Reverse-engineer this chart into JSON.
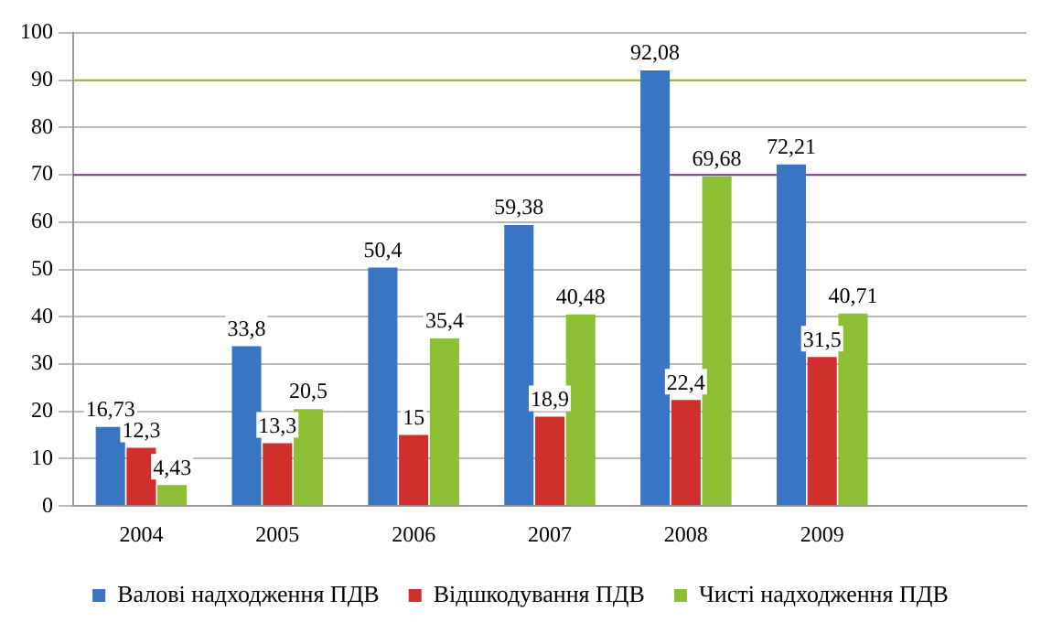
{
  "chart_data": {
    "type": "bar",
    "categories": [
      "2004",
      "2005",
      "2006",
      "2007",
      "2008",
      "2009",
      null
    ],
    "series": [
      {
        "name": "Валові надходження ПДВ",
        "color": "#3a75c4",
        "values": [
          16.73,
          33.8,
          50.4,
          59.38,
          92.08,
          72.21,
          null
        ],
        "value_labels": [
          "16,73",
          "33,8",
          "50,4",
          "59,38",
          "92,08",
          "72,21",
          null
        ]
      },
      {
        "name": "Відшкодування ПДВ",
        "color": "#d0302c",
        "values": [
          12.3,
          13.3,
          15,
          18.9,
          22.4,
          31.5,
          null
        ],
        "value_labels": [
          "12,3",
          "13,3",
          "15",
          "18,9",
          "22,4",
          "31,5",
          null
        ]
      },
      {
        "name": "Чисті надходження ПДВ",
        "color": "#8cbf34",
        "values": [
          4.43,
          20.5,
          35.4,
          40.48,
          69.68,
          40.71,
          null
        ],
        "value_labels": [
          "4,43",
          "20,5",
          "35,4",
          "40,48",
          "69,68",
          "40,71",
          null
        ]
      }
    ],
    "ylim": [
      0,
      100
    ],
    "yticks": [
      0,
      10,
      20,
      30,
      40,
      50,
      60,
      70,
      80,
      90,
      100
    ],
    "ref_lines": [
      {
        "axis": "y",
        "value": 70,
        "color": "#8a3a9a"
      },
      {
        "axis": "y",
        "value": 90,
        "color": "#a8a83a"
      }
    ],
    "grid": "y",
    "legend": "bottom"
  }
}
